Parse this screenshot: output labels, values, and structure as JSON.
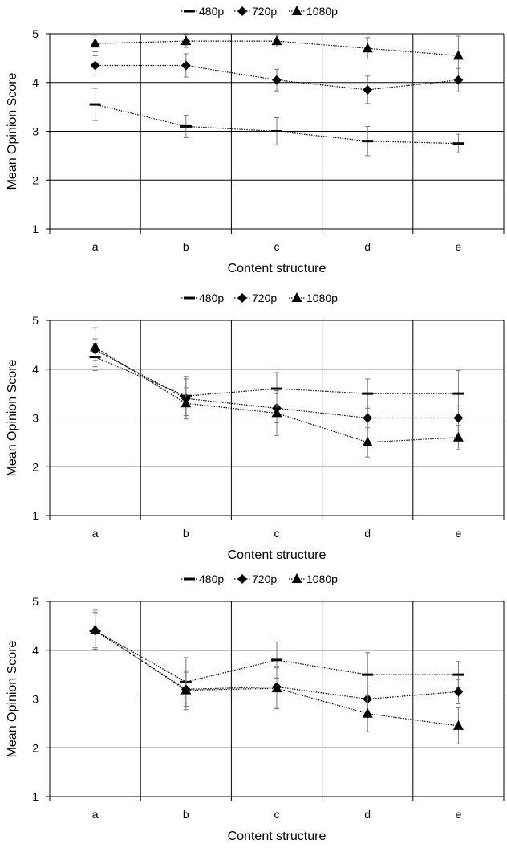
{
  "chart_data": [
    {
      "type": "line",
      "categories": [
        "a",
        "b",
        "c",
        "d",
        "e"
      ],
      "xlabel": "Content structure",
      "ylabel": "Mean Opinion Score",
      "ylim": [
        1,
        5
      ],
      "yticks": [
        1,
        2,
        3,
        4,
        5
      ],
      "grid": true,
      "legend_position": "top",
      "series": [
        {
          "name": "480p",
          "marker": "dash",
          "values": [
            3.55,
            3.1,
            3.0,
            2.8,
            2.75
          ],
          "errors": [
            0.33,
            0.23,
            0.28,
            0.3,
            0.19
          ]
        },
        {
          "name": "720p",
          "marker": "diamond",
          "values": [
            4.35,
            4.35,
            4.05,
            3.85,
            4.05
          ],
          "errors": [
            0.2,
            0.24,
            0.22,
            0.28,
            0.24
          ]
        },
        {
          "name": "1080p",
          "marker": "triangle",
          "values": [
            4.8,
            4.85,
            4.85,
            4.7,
            4.55
          ],
          "errors": [
            0.17,
            0.13,
            0.12,
            0.22,
            0.4
          ]
        }
      ]
    },
    {
      "type": "line",
      "categories": [
        "a",
        "b",
        "c",
        "d",
        "e"
      ],
      "xlabel": "Content structure",
      "ylabel": "Mean Opinion Score",
      "ylim": [
        1,
        5
      ],
      "yticks": [
        1,
        2,
        3,
        4,
        5
      ],
      "grid": true,
      "legend_position": "top",
      "series": [
        {
          "name": "480p",
          "marker": "dash",
          "values": [
            4.25,
            3.45,
            3.6,
            3.5,
            3.5
          ],
          "errors": [
            0.28,
            0.4,
            0.33,
            0.3,
            0.47
          ]
        },
        {
          "name": "720p",
          "marker": "diamond",
          "values": [
            4.4,
            3.4,
            3.2,
            3.0,
            3.0
          ],
          "errors": [
            0.22,
            0.4,
            0.3,
            0.25,
            0.25
          ]
        },
        {
          "name": "1080p",
          "marker": "triangle",
          "values": [
            4.45,
            3.3,
            3.1,
            2.5,
            2.6
          ],
          "errors": [
            0.4,
            0.32,
            0.46,
            0.3,
            0.25
          ]
        }
      ]
    },
    {
      "type": "line",
      "categories": [
        "a",
        "b",
        "c",
        "d",
        "e"
      ],
      "xlabel": "Content structure",
      "ylabel": "Mean Opinion Score",
      "ylim": [
        1,
        5
      ],
      "yticks": [
        1,
        2,
        3,
        4,
        5
      ],
      "grid": true,
      "legend_position": "top",
      "series": [
        {
          "name": "480p",
          "marker": "dash",
          "values": [
            4.4,
            3.35,
            3.8,
            3.5,
            3.5
          ],
          "errors": [
            0.38,
            0.5,
            0.37,
            0.45,
            0.27
          ]
        },
        {
          "name": "720p",
          "marker": "diamond",
          "values": [
            4.4,
            3.2,
            3.25,
            3.0,
            3.15
          ],
          "errors": [
            0.35,
            0.35,
            0.42,
            0.25,
            0.25
          ]
        },
        {
          "name": "1080p",
          "marker": "triangle",
          "values": [
            4.42,
            3.18,
            3.22,
            2.7,
            2.45
          ],
          "errors": [
            0.4,
            0.4,
            0.42,
            0.37,
            0.37
          ]
        }
      ]
    }
  ]
}
